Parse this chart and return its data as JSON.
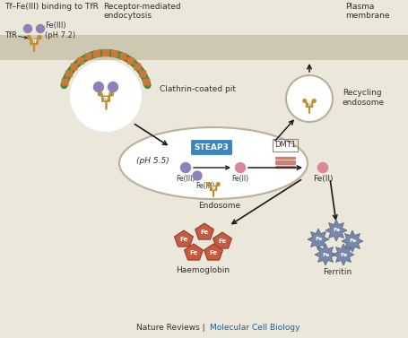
{
  "bg_color": "#ebe7da",
  "title_text": "Tf–Fe(III) binding to TfR",
  "footer_text1": "Nature Reviews",
  "footer_text2": "Molecular Cell Biology",
  "label_receptor_mediated": "Receptor-mediated\nendocytosis",
  "label_clathrin": "Clathrin-coated pit",
  "label_plasma_membrane": "Plasma\nmembrane",
  "label_recycling_endosome": "Recycling\nendosome",
  "label_ph55": "(pH 5.5)",
  "label_steap3": "STEAP3",
  "label_feIII_1": "Fe(III)",
  "label_feIII_2": "Fe(III)",
  "label_feII_1": "Fe(II)",
  "label_dmt1": "DMT1",
  "label_feII_2": "Fe(II)",
  "label_endosome": "Endosome",
  "label_tfr": "TfR",
  "label_feIII_top": "Fe(III)",
  "label_ph72": "(pH 7.2)",
  "label_haemoglobin": "Haemoglobin",
  "label_ferritin": "Ferritin",
  "colors": {
    "plasma_membrane_bg": "#cec8b2",
    "arrow_dark": "#1a1a1a",
    "steap3_blue": "#3a85c0",
    "fe_sphere_purple": "#9080b8",
    "fe_sphere_pink": "#d88898",
    "fe_haemo_orange": "#c85a40",
    "fe_ferritin_blue": "#7888a8",
    "clathrin_green": "#4a8840",
    "clathrin_orange": "#cc7838",
    "receptor_gold": "#c09030",
    "endosome_outline": "#b8b098",
    "label_blue": "#1a5fa0",
    "text_dark": "#303030",
    "white": "#ffffff",
    "dmt1_outline": "#908878"
  }
}
